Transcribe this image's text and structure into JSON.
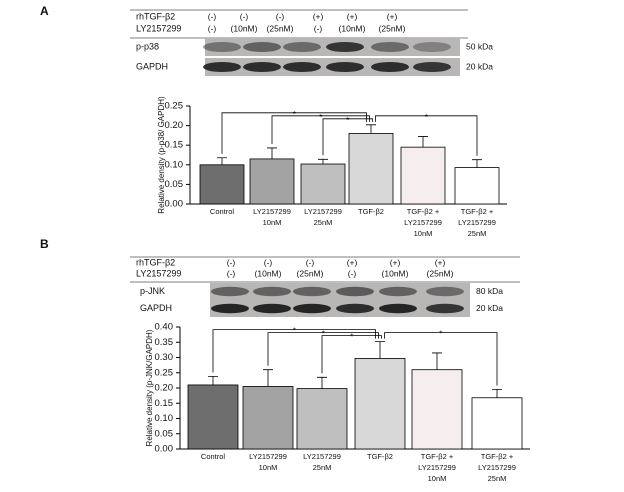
{
  "panels": [
    {
      "label": "A",
      "treatments": [
        {
          "name": "rhTGF-β2",
          "cells": [
            "(-)",
            "(-)",
            "(-)",
            "(+)",
            "(+)",
            "(+)"
          ]
        },
        {
          "name": "LY2157299",
          "cells": [
            "(-)",
            "(10nM)",
            "(25nM)",
            "(-)",
            "(10nM)",
            "(25nM)"
          ]
        }
      ],
      "blots": [
        {
          "name": "p-p38",
          "size": "50 kDa"
        },
        {
          "name": "GAPDH",
          "size": "20 kDa"
        }
      ]
    },
    {
      "label": "B",
      "treatments": [
        {
          "name": "rhTGF-β2",
          "cells": [
            "(-)",
            "(-)",
            "(-)",
            "(+)",
            "(+)",
            "(+)"
          ]
        },
        {
          "name": "LY2157299",
          "cells": [
            "(-)",
            "(10nM)",
            "(25nM)",
            "(-)",
            "(10nM)",
            "(25nM)"
          ]
        }
      ],
      "blots": [
        {
          "name": "p-JNK",
          "size": "80 kDa"
        },
        {
          "name": "GAPDH",
          "size": "20 kDa"
        }
      ]
    }
  ],
  "chart_data": [
    {
      "type": "bar",
      "ylabel": "Relative density (p-p38/ GAPDH)",
      "categories": [
        "Control",
        "LY2157299\n10nM",
        "LY2157299\n25nM",
        "TGF-β2",
        "TGF-β2 +\nLY2157299\n10nM",
        "TGF-β2 +\nLY2157299\n25nM"
      ],
      "values": [
        0.1,
        0.115,
        0.102,
        0.18,
        0.145,
        0.093
      ],
      "errors": [
        0.018,
        0.028,
        0.012,
        0.022,
        0.027,
        0.02
      ],
      "colors": [
        "#6e6e6e",
        "#a3a3a3",
        "#bfbfbf",
        "#d8d8d8",
        "#f6eeee",
        "#ffffff"
      ],
      "ylim": [
        0,
        0.25
      ],
      "yticks": [
        {
          "value": 0,
          "label": "0.00"
        },
        {
          "value": 0.05,
          "label": "0.05"
        },
        {
          "value": 0.1,
          "label": "0.10"
        },
        {
          "value": 0.15,
          "label": "0.15"
        },
        {
          "value": 0.2,
          "label": "0.20"
        },
        {
          "value": 0.25,
          "label": "0.25"
        }
      ],
      "significance_label": "*"
    },
    {
      "type": "bar",
      "ylabel": "Relative density (p-JNK/GAPDH)",
      "categories": [
        "Control",
        "LY2157299\n10nM",
        "LY2157299\n25nM",
        "TGF-β2",
        "TGF-β2 +\nLY2157299\n10nM",
        "TGF-β2 +\nLY2157299\n25nM"
      ],
      "values": [
        0.21,
        0.205,
        0.198,
        0.297,
        0.26,
        0.168
      ],
      "errors": [
        0.028,
        0.055,
        0.037,
        0.055,
        0.055,
        0.027
      ],
      "colors": [
        "#6e6e6e",
        "#a3a3a3",
        "#bfbfbf",
        "#d8d8d8",
        "#f6eeee",
        "#ffffff"
      ],
      "ylim": [
        0,
        0.4
      ],
      "yticks": [
        {
          "value": 0,
          "label": "0.00"
        },
        {
          "value": 0.05,
          "label": "0.05"
        },
        {
          "value": 0.1,
          "label": "0.10"
        },
        {
          "value": 0.15,
          "label": "0.15"
        },
        {
          "value": 0.2,
          "label": "0.20"
        },
        {
          "value": 0.25,
          "label": "0.25"
        },
        {
          "value": 0.3,
          "label": "0.30"
        },
        {
          "value": 0.35,
          "label": "0.35"
        },
        {
          "value": 0.4,
          "label": "0.40"
        }
      ],
      "significance_label": "*"
    }
  ]
}
